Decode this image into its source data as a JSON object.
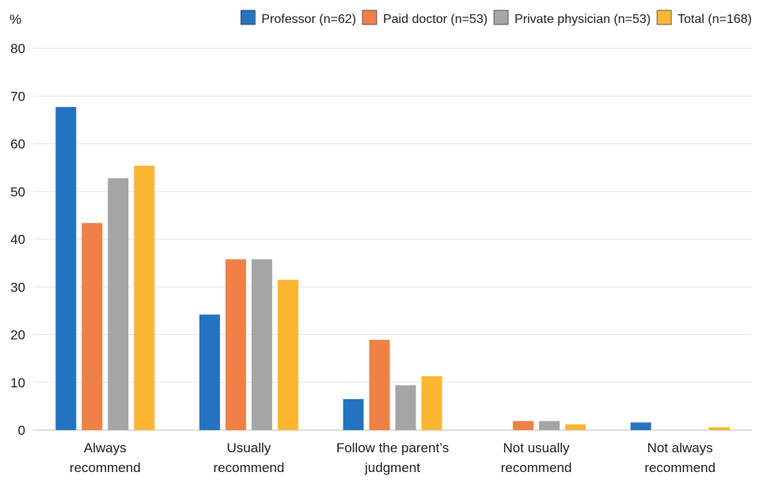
{
  "chart_data": {
    "type": "bar",
    "ylabel": "%",
    "ylim": [
      0,
      80
    ],
    "yticks": [
      0,
      10,
      20,
      30,
      40,
      50,
      60,
      70,
      80
    ],
    "grid": true,
    "legend_position": "top-right",
    "categories": [
      [
        "Always",
        "recommend"
      ],
      [
        "Usually",
        "recommend"
      ],
      [
        "Follow the parent’s",
        "judgment"
      ],
      [
        "Not usually",
        "recommend"
      ],
      [
        "Not always",
        "recommend"
      ]
    ],
    "series": [
      {
        "name": "Professor (n=62)",
        "color": "#2473c0",
        "values": [
          67.7,
          24.2,
          6.5,
          0,
          1.6
        ]
      },
      {
        "name": "Paid doctor (n=53)",
        "color": "#f08146",
        "values": [
          43.4,
          35.8,
          18.9,
          1.9,
          0
        ]
      },
      {
        "name": "Private physician (n=53)",
        "color": "#a5a5a5",
        "values": [
          52.8,
          35.8,
          9.4,
          1.9,
          0
        ]
      },
      {
        "name": "Total (n=168)",
        "color": "#fbb732",
        "values": [
          55.4,
          31.5,
          11.3,
          1.2,
          0.6
        ]
      }
    ]
  }
}
